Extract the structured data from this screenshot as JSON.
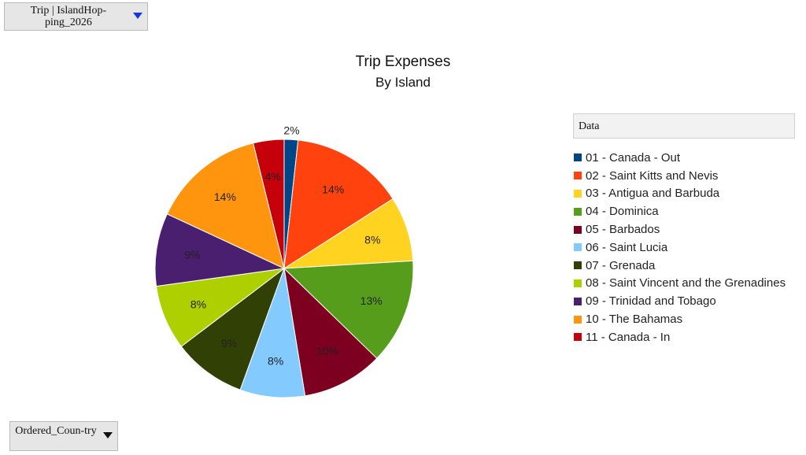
{
  "page_filter": {
    "label": "Trip | IslandHop-ping_2026"
  },
  "row_field": {
    "label": "Ordered_Coun-try"
  },
  "legend": {
    "title": "Data"
  },
  "chart_data": {
    "type": "pie",
    "title": "Trip Expenses",
    "subtitle": "By Island",
    "categories": [
      "01 - Canada - Out",
      "02 - Saint Kitts and Nevis",
      "03 - Antigua and Barbuda",
      "04 - Dominica",
      "05 - Barbados",
      "06 - Saint Lucia",
      "07 - Grenada",
      "08 - Saint Vincent and the Grenadines",
      "09 - Trinidad and Tobago",
      "10 - The Bahamas",
      "11 - Canada - In"
    ],
    "values": [
      1.7,
      14,
      8,
      13,
      10,
      8,
      9,
      8,
      9,
      14,
      3.8
    ],
    "data_labels": [
      "2%",
      "14%",
      "8%",
      "13%",
      "10%",
      "8%",
      "9%",
      "8%",
      "9%",
      "14%",
      "4%"
    ],
    "colors": [
      "#004586",
      "#ff420e",
      "#ffd320",
      "#579d1c",
      "#7e0021",
      "#83caff",
      "#314004",
      "#aecf00",
      "#4b1f6f",
      "#ff950e",
      "#c5000b"
    ],
    "direction": "clockwise",
    "start_angle": "12 o'clock",
    "legend_position": "right"
  }
}
